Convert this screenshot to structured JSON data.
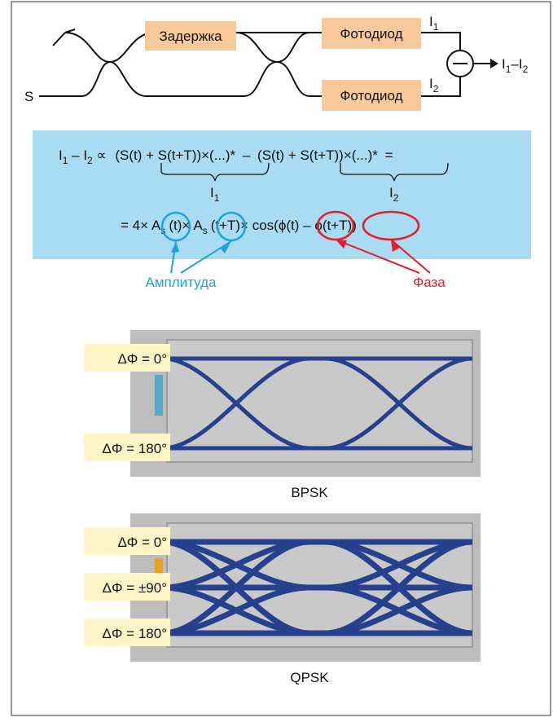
{
  "schematic": {
    "input": "S",
    "delay": "Задержка",
    "photodiode_top": "Фотодиод",
    "photodiode_bottom": "Фотодиод",
    "current_top": {
      "main": "I",
      "sub": "1"
    },
    "current_bottom": {
      "main": "I",
      "sub": "2"
    },
    "output": {
      "main1": "I",
      "sub1": "1",
      "main2": "–I",
      "sub2": "2"
    }
  },
  "formula": {
    "line1": {
      "i1": "I",
      "i1_sub": "1",
      "minus_i2": " – I",
      "i2_sub": "2",
      "prop": " ∝ ",
      "term1": "(S(t) + S(t+T))×(...)*",
      "minus": " – ",
      "term2": "(S(t) + S(t+T))×(...)*",
      "eq": " ="
    },
    "brace1": {
      "main": "I",
      "sub": "1"
    },
    "brace2": {
      "main": "I",
      "sub": "2"
    },
    "line2": {
      "start": "= 4×",
      "a1": "A",
      "a1_sub": "s",
      "mid1": "(t)×",
      "a2": "A",
      "a2_sub": "s",
      "mid2": "(t+T)× cos(",
      "phi1": "ϕ(t)",
      "minus": " – ",
      "phi2": "ϕ(t+T)",
      "end": ")"
    }
  },
  "annotations": {
    "amplitude": "Амплитуда",
    "phase": "Фаза"
  },
  "eye_diagrams": [
    {
      "label": "BPSK",
      "levels": [
        "ΔΦ = 0°",
        "ΔΦ = 180°"
      ]
    },
    {
      "label": "QPSK",
      "levels": [
        "ΔΦ = 0°",
        "ΔΦ = ±90°",
        "ΔΦ = 180°"
      ]
    }
  ]
}
